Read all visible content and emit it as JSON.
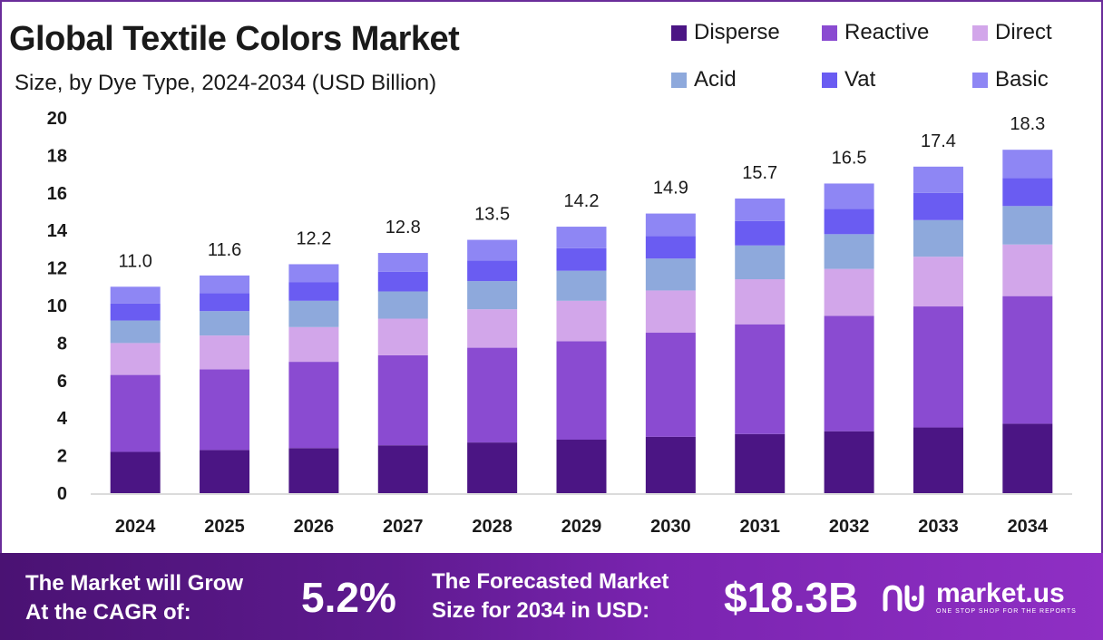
{
  "header": {
    "title": "Global Textile Colors Market",
    "subtitle": "Size, by Dye Type, 2024-2034 (USD Billion)"
  },
  "chart_data": {
    "type": "bar",
    "stacked": true,
    "categories": [
      "2024",
      "2025",
      "2026",
      "2027",
      "2028",
      "2029",
      "2030",
      "2031",
      "2032",
      "2033",
      "2034"
    ],
    "totals": [
      "11.0",
      "11.6",
      "12.2",
      "12.8",
      "13.5",
      "14.2",
      "14.9",
      "15.7",
      "16.5",
      "17.4",
      "18.3"
    ],
    "series": [
      {
        "name": "Disperse",
        "color": "#4b1584",
        "values": [
          2.2,
          2.3,
          2.4,
          2.55,
          2.7,
          2.85,
          3.0,
          3.15,
          3.3,
          3.5,
          3.7
        ]
      },
      {
        "name": "Reactive",
        "color": "#8a4bd1",
        "values": [
          4.1,
          4.3,
          4.6,
          4.8,
          5.05,
          5.25,
          5.55,
          5.85,
          6.15,
          6.45,
          6.8
        ]
      },
      {
        "name": "Direct",
        "color": "#d2a6ea",
        "values": [
          1.7,
          1.8,
          1.85,
          1.95,
          2.05,
          2.15,
          2.25,
          2.4,
          2.5,
          2.65,
          2.75
        ]
      },
      {
        "name": "Acid",
        "color": "#8ea9dc",
        "values": [
          1.2,
          1.3,
          1.4,
          1.45,
          1.5,
          1.6,
          1.7,
          1.8,
          1.85,
          1.95,
          2.05
        ]
      },
      {
        "name": "Vat",
        "color": "#6a5cf2",
        "values": [
          0.9,
          0.95,
          1.0,
          1.05,
          1.1,
          1.2,
          1.2,
          1.3,
          1.35,
          1.45,
          1.5
        ]
      },
      {
        "name": "Basic",
        "color": "#8e86f4",
        "values": [
          0.9,
          0.95,
          0.95,
          1.0,
          1.1,
          1.15,
          1.2,
          1.2,
          1.35,
          1.4,
          1.5
        ]
      }
    ],
    "y_ticks": [
      "0",
      "2",
      "4",
      "6",
      "8",
      "10",
      "12",
      "14",
      "16",
      "18",
      "20"
    ],
    "ylim": [
      0,
      20
    ],
    "grid": false,
    "legend_position": "top-right"
  },
  "footer": {
    "cagr_label_line1": "The Market will Grow",
    "cagr_label_line2": "At the CAGR of:",
    "cagr_value": "5.2%",
    "forecast_label_line1": "The Forecasted Market",
    "forecast_label_line2": "Size for 2034 in USD:",
    "forecast_value": "$18.3B",
    "brand_name": "market.us",
    "brand_tagline": "ONE STOP SHOP FOR THE REPORTS",
    "brand_icon": "market-us-logo-icon"
  }
}
